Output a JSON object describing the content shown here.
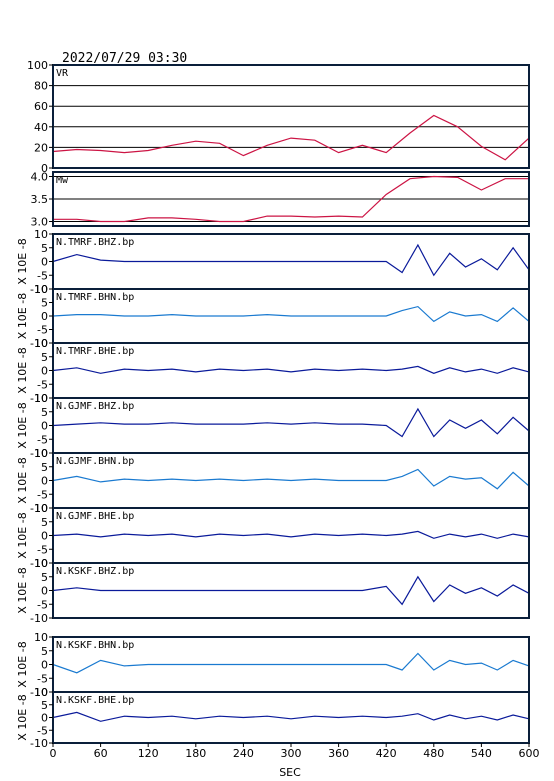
{
  "chart_data": {
    "type": "line",
    "title": "2022/07/29 03:30",
    "xlabel": "SEC",
    "xlim": [
      0,
      600
    ],
    "xticks": [
      "0",
      "60",
      "120",
      "180",
      "240",
      "300",
      "360",
      "420",
      "480",
      "540",
      "600"
    ],
    "unit_label": "X 10E -8",
    "colors": {
      "vr": "#cc1444",
      "mw": "#cc1444",
      "dark": "#0a1a9a",
      "light": "#1a7ad0",
      "frame": "#0a1f3a"
    },
    "panels": [
      {
        "label": "VR",
        "ylim": [
          0,
          100
        ],
        "yticks": [
          "0",
          "20",
          "40",
          "60",
          "80",
          "100"
        ],
        "grid": true,
        "x": [
          0,
          30,
          60,
          90,
          120,
          150,
          180,
          210,
          240,
          270,
          300,
          330,
          360,
          390,
          420,
          450,
          480,
          510,
          540,
          570,
          600
        ],
        "y": [
          16,
          18,
          17,
          15,
          17,
          22,
          26,
          24,
          12,
          22,
          29,
          27,
          15,
          22,
          15,
          34,
          51,
          40,
          21,
          8,
          29
        ]
      },
      {
        "label": "Mw",
        "ylim": [
          2.9,
          4.1
        ],
        "yticks": [
          "3.0",
          "3.5",
          "4.0"
        ],
        "grid": true,
        "x": [
          0,
          30,
          60,
          90,
          120,
          150,
          180,
          210,
          240,
          270,
          300,
          330,
          360,
          390,
          420,
          450,
          480,
          510,
          540,
          570,
          600
        ],
        "y": [
          3.05,
          3.05,
          3.0,
          3.0,
          3.08,
          3.08,
          3.05,
          3.0,
          3.0,
          3.12,
          3.12,
          3.1,
          3.12,
          3.1,
          3.6,
          3.95,
          4.0,
          3.98,
          3.7,
          3.95,
          3.95
        ]
      },
      {
        "label": "N.TMRF.BHZ.bp",
        "ylim": [
          -10,
          10
        ],
        "yticks": [
          "-10",
          "-5",
          "0",
          "5",
          "10"
        ],
        "color": "dark",
        "x": [
          0,
          30,
          60,
          90,
          120,
          150,
          180,
          210,
          240,
          270,
          300,
          330,
          360,
          390,
          420,
          440,
          460,
          480,
          500,
          520,
          540,
          560,
          580,
          600
        ],
        "y": [
          0,
          2.5,
          0.5,
          0,
          0,
          0,
          0,
          0,
          0,
          0,
          0,
          0,
          0,
          0,
          0,
          -4,
          6,
          -5,
          3,
          -2,
          1,
          -3,
          5,
          -3
        ]
      },
      {
        "label": "N.TMRF.BHN.bp",
        "ylim": [
          -10,
          10
        ],
        "yticks": [
          "-10",
          "-5",
          "0",
          "5",
          "10"
        ],
        "color": "light",
        "x": [
          0,
          30,
          60,
          90,
          120,
          150,
          180,
          210,
          240,
          270,
          300,
          330,
          360,
          390,
          420,
          440,
          460,
          480,
          500,
          520,
          540,
          560,
          580,
          600
        ],
        "y": [
          0,
          0.5,
          0.5,
          0,
          0,
          0.5,
          0,
          0,
          0,
          0.5,
          0,
          0,
          0,
          0,
          0,
          2,
          3.5,
          -2,
          1.5,
          0,
          0.5,
          -2,
          3,
          -2
        ]
      },
      {
        "label": "N.TMRF.BHE.bp",
        "ylim": [
          -10,
          10
        ],
        "yticks": [
          "-10",
          "-5",
          "0",
          "5",
          "10"
        ],
        "color": "dark",
        "x": [
          0,
          30,
          60,
          90,
          120,
          150,
          180,
          210,
          240,
          270,
          300,
          330,
          360,
          390,
          420,
          440,
          460,
          480,
          500,
          520,
          540,
          560,
          580,
          600
        ],
        "y": [
          0,
          1,
          -1,
          0.5,
          0,
          0.5,
          -0.5,
          0.5,
          0,
          0.5,
          -0.5,
          0.5,
          0,
          0.5,
          0,
          0.5,
          1.5,
          -1,
          1,
          -0.5,
          0.5,
          -1,
          1,
          -0.5
        ]
      },
      {
        "label": "N.GJMF.BHZ.bp",
        "ylim": [
          -10,
          10
        ],
        "yticks": [
          "-10",
          "-5",
          "0",
          "5",
          "10"
        ],
        "color": "dark",
        "x": [
          0,
          30,
          60,
          90,
          120,
          150,
          180,
          210,
          240,
          270,
          300,
          330,
          360,
          390,
          420,
          440,
          460,
          480,
          500,
          520,
          540,
          560,
          580,
          600
        ],
        "y": [
          0,
          0.5,
          1,
          0.5,
          0.5,
          1,
          0.5,
          0.5,
          0.5,
          1,
          0.5,
          1,
          0.5,
          0.5,
          0,
          -4,
          6,
          -4,
          2,
          -1,
          2,
          -3,
          3,
          -2
        ]
      },
      {
        "label": "N.GJMF.BHN.bp",
        "ylim": [
          -10,
          10
        ],
        "yticks": [
          "-10",
          "-5",
          "0",
          "5",
          "10"
        ],
        "color": "light",
        "x": [
          0,
          30,
          60,
          90,
          120,
          150,
          180,
          210,
          240,
          270,
          300,
          330,
          360,
          390,
          420,
          440,
          460,
          480,
          500,
          520,
          540,
          560,
          580,
          600
        ],
        "y": [
          0,
          1.5,
          -0.5,
          0.5,
          0,
          0.5,
          0,
          0.5,
          0,
          0.5,
          0,
          0.5,
          0,
          0,
          0,
          1.5,
          4,
          -2,
          1.5,
          0.5,
          1,
          -3,
          3,
          -2
        ]
      },
      {
        "label": "N.GJMF.BHE.bp",
        "ylim": [
          -10,
          10
        ],
        "yticks": [
          "-10",
          "-5",
          "0",
          "5",
          "10"
        ],
        "color": "dark",
        "x": [
          0,
          30,
          60,
          90,
          120,
          150,
          180,
          210,
          240,
          270,
          300,
          330,
          360,
          390,
          420,
          440,
          460,
          480,
          500,
          520,
          540,
          560,
          580,
          600
        ],
        "y": [
          0,
          0.5,
          -0.5,
          0.5,
          0,
          0.5,
          -0.5,
          0.5,
          0,
          0.5,
          -0.5,
          0.5,
          0,
          0.5,
          0,
          0.5,
          1.5,
          -1,
          0.5,
          -0.5,
          0.5,
          -1,
          0.5,
          -0.5
        ]
      },
      {
        "label": "N.KSKF.BHZ.bp",
        "ylim": [
          -10,
          10
        ],
        "yticks": [
          "-10",
          "-5",
          "0",
          "5",
          "10"
        ],
        "color": "dark",
        "x": [
          0,
          30,
          60,
          90,
          120,
          150,
          180,
          210,
          240,
          270,
          300,
          330,
          360,
          390,
          420,
          440,
          460,
          480,
          500,
          520,
          540,
          560,
          580,
          600
        ],
        "y": [
          0,
          1,
          0,
          0,
          0,
          0,
          0,
          0,
          0,
          0,
          0,
          0,
          0,
          0,
          1.5,
          -5,
          5,
          -4,
          2,
          -1,
          1,
          -2,
          2,
          -1
        ]
      },
      {
        "label": "N.KSKF.BHN.bp",
        "ylim": [
          -10,
          10
        ],
        "yticks": [
          "-10",
          "-5",
          "0",
          "5",
          "10"
        ],
        "color": "light",
        "x": [
          0,
          30,
          60,
          90,
          120,
          150,
          180,
          210,
          240,
          270,
          300,
          330,
          360,
          390,
          420,
          440,
          460,
          480,
          500,
          520,
          540,
          560,
          580,
          600
        ],
        "y": [
          0,
          -3,
          1.5,
          -0.5,
          0,
          0,
          0,
          0,
          0,
          0,
          0,
          0,
          0,
          0,
          0,
          -2,
          4,
          -2,
          1.5,
          0,
          0.5,
          -2,
          1.5,
          -0.5
        ]
      },
      {
        "label": "N.KSKF.BHE.bp",
        "ylim": [
          -10,
          10
        ],
        "yticks": [
          "-10",
          "-5",
          "0",
          "5",
          "10"
        ],
        "color": "dark",
        "x": [
          0,
          30,
          60,
          90,
          120,
          150,
          180,
          210,
          240,
          270,
          300,
          330,
          360,
          390,
          420,
          440,
          460,
          480,
          500,
          520,
          540,
          560,
          580,
          600
        ],
        "y": [
          0,
          2,
          -1.5,
          0.5,
          0,
          0.5,
          -0.5,
          0.5,
          0,
          0.5,
          -0.5,
          0.5,
          0,
          0.5,
          0,
          0.5,
          1.5,
          -1,
          1,
          -0.5,
          0.5,
          -1,
          1,
          -0.5
        ]
      }
    ]
  }
}
